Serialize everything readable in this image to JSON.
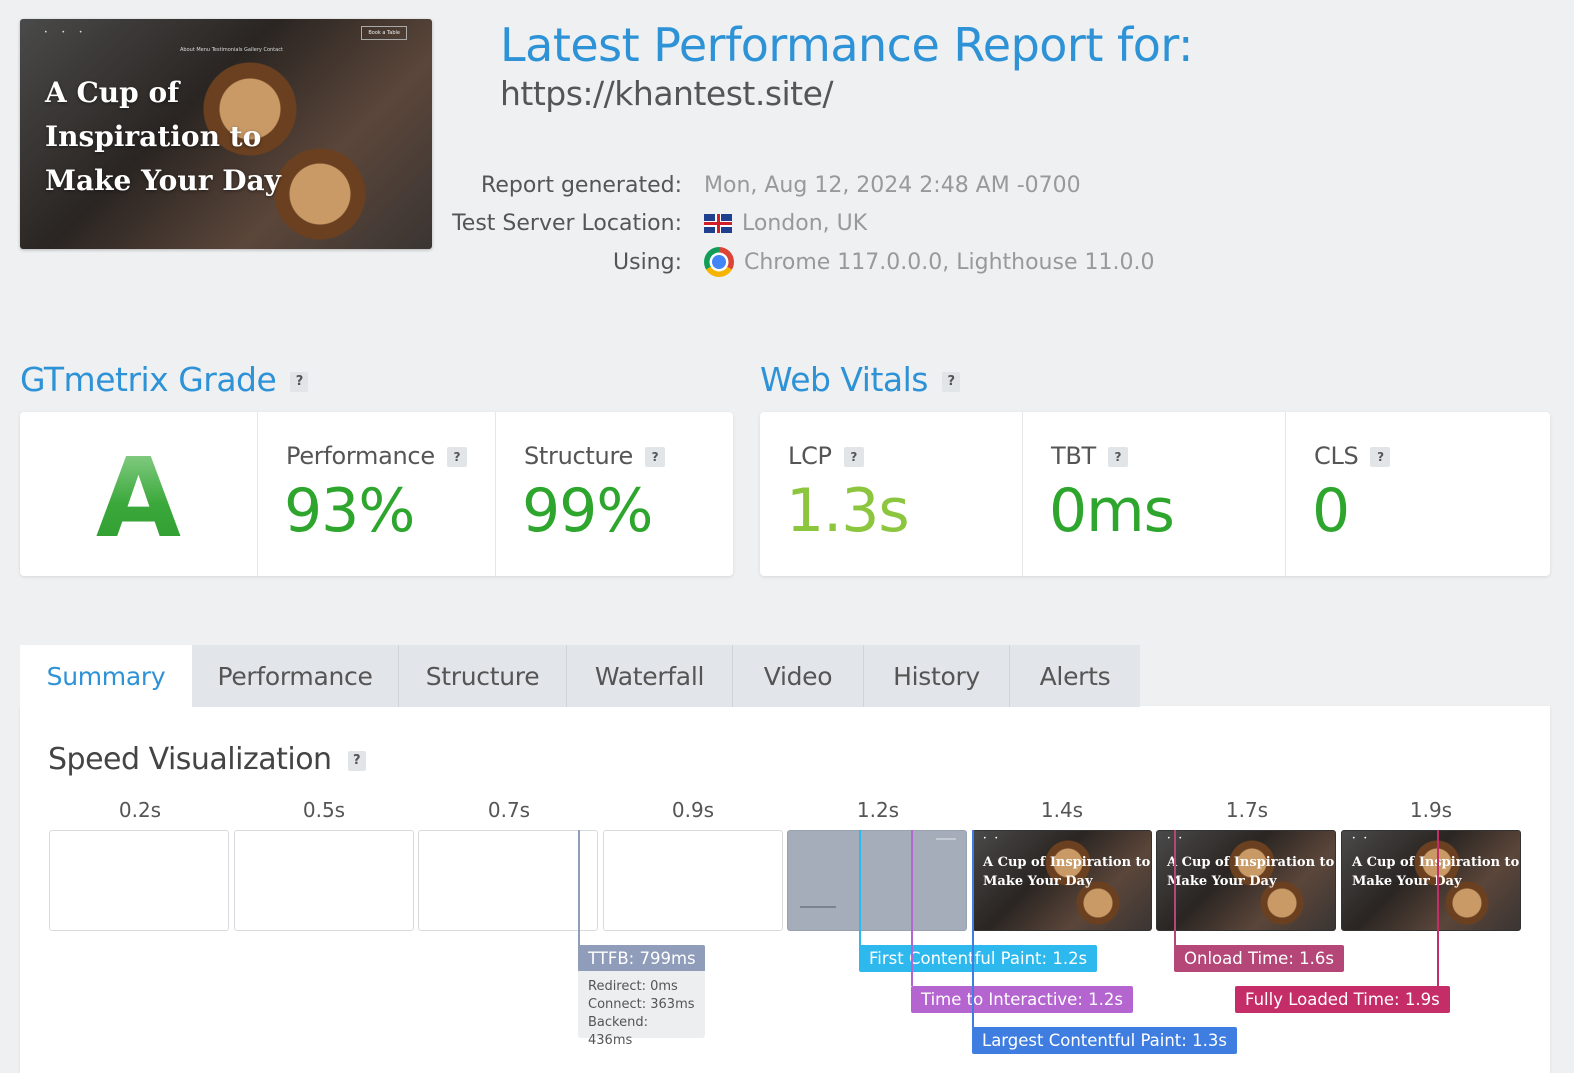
{
  "header": {
    "thumbnail": {
      "hero_text": "A Cup of Inspiration to Make Your Day",
      "nav": "About   Menu   Testimonials   Gallery   Contact",
      "social": "• • •",
      "book_button": "Book a Table"
    },
    "title": "Latest Performance Report for:",
    "url": "https://khantest.site/",
    "meta": {
      "report_generated_label": "Report generated:",
      "report_generated_value": "Mon, Aug 12, 2024 2:48 AM -0700",
      "server_location_label": "Test Server Location:",
      "server_location_value": "London, UK",
      "using_label": "Using:",
      "using_value": "Chrome 117.0.0.0, Lighthouse 11.0.0"
    }
  },
  "gtmetrix": {
    "title": "GTmetrix Grade",
    "help": "?",
    "grade": "A",
    "performance_label": "Performance",
    "performance_value": "93%",
    "structure_label": "Structure",
    "structure_value": "99%"
  },
  "web_vitals": {
    "title": "Web Vitals",
    "help": "?",
    "lcp_label": "LCP",
    "lcp_value": "1.3s",
    "tbt_label": "TBT",
    "tbt_value": "0ms",
    "cls_label": "CLS",
    "cls_value": "0"
  },
  "colors": {
    "accent_blue": "#2e92d6",
    "grade_green": "#3cad3c",
    "value_green": "#2ea62e",
    "lcp_yellowgreen": "#8cc63f"
  },
  "tabs": [
    "Summary",
    "Performance",
    "Structure",
    "Waterfall",
    "Video",
    "History",
    "Alerts"
  ],
  "speed_visualization": {
    "title": "Speed Visualization",
    "help": "?",
    "frames": [
      "0.2s",
      "0.5s",
      "0.7s",
      "0.9s",
      "1.2s",
      "1.4s",
      "1.7s",
      "1.9s"
    ],
    "frame_hero_text": "A Cup of Inspiration to Make Your Day",
    "markers": {
      "ttfb": "TTFB: 799ms",
      "ttfb_redirect": "Redirect: 0ms",
      "ttfb_connect": "Connect: 363ms",
      "ttfb_backend": "Backend: 436ms",
      "fcp": "First Contentful Paint: 1.2s",
      "tti": "Time to Interactive: 1.2s",
      "lcp": "Largest Contentful Paint: 1.3s",
      "onload": "Onload Time: 1.6s",
      "fully_loaded": "Fully Loaded Time: 1.9s"
    },
    "marker_colors": {
      "ttfb": "#8f9cba",
      "fcp": "#2db8ee",
      "tti": "#b565d0",
      "lcp": "#3f7ee0",
      "onload": "#b54778",
      "fully_loaded": "#c42d67"
    }
  }
}
